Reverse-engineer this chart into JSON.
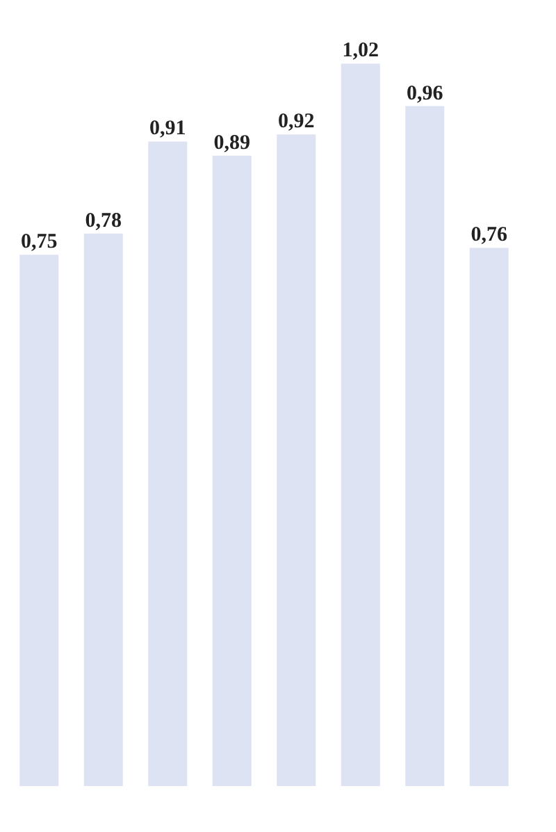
{
  "chart_data": {
    "type": "bar",
    "categories": [
      null,
      null,
      null,
      null,
      null,
      null,
      null,
      null
    ],
    "values": [
      0.75,
      0.78,
      0.91,
      0.89,
      0.92,
      1.02,
      0.96,
      0.76
    ],
    "value_labels": [
      "0,75",
      "0,78",
      "0,91",
      "0,89",
      "0,92",
      "1,02",
      "0,96",
      "0,76"
    ],
    "color": "#dde3f3",
    "grid": false,
    "tick_labels": false
  }
}
